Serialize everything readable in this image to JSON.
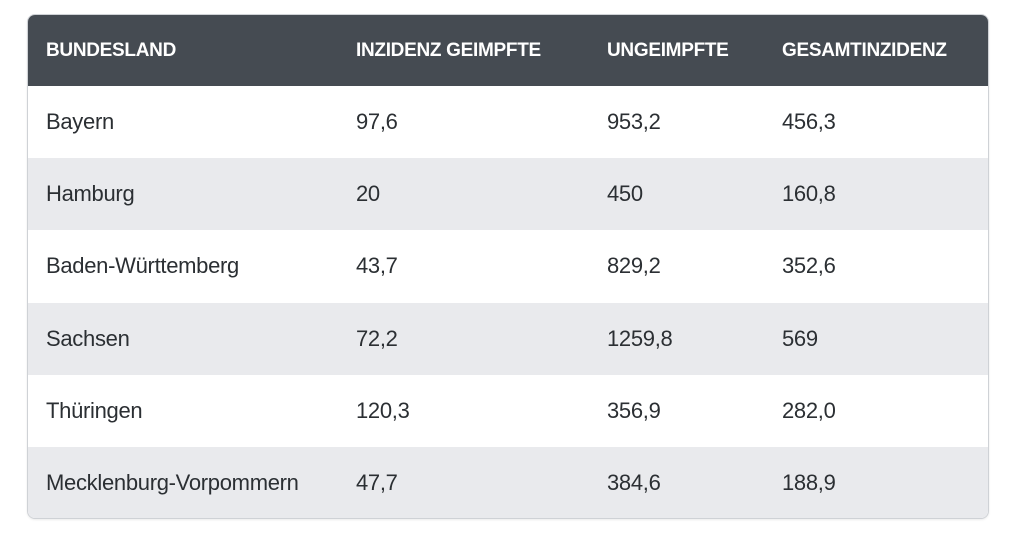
{
  "table": {
    "header": [
      "BUNDESLAND",
      "INZIDENZ GEIMPFTE",
      "UNGEIMPFTE",
      "GESAMTINZIDENZ"
    ],
    "rows": [
      [
        "Bayern",
        "97,6",
        "953,2",
        "456,3"
      ],
      [
        "Hamburg",
        "20",
        "450",
        "160,8"
      ],
      [
        "Baden-Württemberg",
        "43,7",
        "829,2",
        "352,6"
      ],
      [
        "Sachsen",
        "72,2",
        "1259,8",
        "569"
      ],
      [
        "Thüringen",
        "120,3",
        "356,9",
        "282,0"
      ],
      [
        "Mecklenburg-Vorpommern",
        "47,7",
        "384,6",
        "188,9"
      ]
    ]
  }
}
